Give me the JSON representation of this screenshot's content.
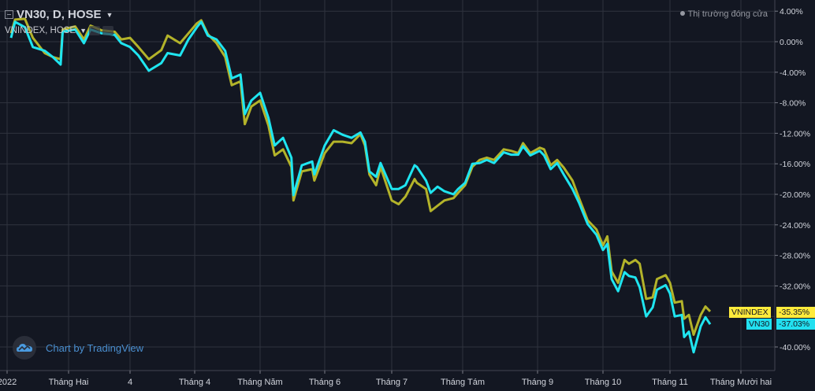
{
  "header": {
    "symbol_title": "VN30, D, HOSE",
    "compare_label": "VNINDEX, HOSE",
    "market_status": "Thị trường đóng cửa"
  },
  "branding": {
    "text": "Chart by TradingView",
    "icon": "tradingview-cloud-icon"
  },
  "colors": {
    "background": "#131722",
    "grid": "#2f333e",
    "vn30": "#1fe5f0",
    "vnindex": "#b3b32a",
    "vnindex_tag": "#ffeb3b",
    "vn30_tag": "#22e0f0"
  },
  "chart_data": {
    "type": "line",
    "title": "",
    "xlabel": "",
    "ylabel": "",
    "ylim": [
      -43,
      5.5
    ],
    "grid": true,
    "y_ticks": [
      "4.00%",
      "0.00%",
      "-4.00%",
      "-8.00%",
      "-12.00%",
      "-16.00%",
      "-20.00%",
      "-24.00%",
      "-28.00%",
      "-32.00%",
      "-40.00%"
    ],
    "y_tick_values": [
      4,
      0,
      -4,
      -8,
      -12,
      -16,
      -20,
      -24,
      -28,
      -32,
      -40
    ],
    "grid_values": [
      4,
      0,
      -4,
      -8,
      -12,
      -16,
      -20,
      -24,
      -28,
      -32,
      -36,
      -40
    ],
    "x_ticks": [
      {
        "label": "2022",
        "date": "2022-01-01"
      },
      {
        "label": "Tháng Hai",
        "date": "2022-02-01"
      },
      {
        "label": "4",
        "date": "2022-03-01"
      },
      {
        "label": "Tháng 4",
        "date": "2022-04-01"
      },
      {
        "label": "Tháng Năm",
        "date": "2022-05-01"
      },
      {
        "label": "Tháng 6",
        "date": "2022-06-01"
      },
      {
        "label": "Tháng 7",
        "date": "2022-07-01"
      },
      {
        "label": "Tháng Tám",
        "date": "2022-08-01"
      },
      {
        "label": "Tháng 9",
        "date": "2022-09-01"
      },
      {
        "label": "Tháng 10",
        "date": "2022-10-01"
      },
      {
        "label": "Tháng 11",
        "date": "2022-11-01"
      },
      {
        "label": "Tháng Mười hai",
        "date": "2022-12-01"
      }
    ],
    "x": [
      "2022-01-03",
      "2022-01-05",
      "2022-01-10",
      "2022-01-14",
      "2022-01-20",
      "2022-01-24",
      "2022-01-28",
      "2022-01-29",
      "2022-02-04",
      "2022-02-08",
      "2022-02-11",
      "2022-02-16",
      "2022-02-22",
      "2022-02-25",
      "2022-03-01",
      "2022-03-05",
      "2022-03-10",
      "2022-03-16",
      "2022-03-19",
      "2022-03-25",
      "2022-03-29",
      "2022-04-02",
      "2022-04-04",
      "2022-04-07",
      "2022-04-11",
      "2022-04-15",
      "2022-04-18",
      "2022-04-22",
      "2022-04-24",
      "2022-04-27",
      "2022-05-01",
      "2022-05-05",
      "2022-05-08",
      "2022-05-12",
      "2022-05-16",
      "2022-05-17",
      "2022-05-21",
      "2022-05-26",
      "2022-05-27",
      "2022-06-01",
      "2022-06-05",
      "2022-06-09",
      "2022-06-13",
      "2022-06-17",
      "2022-06-19",
      "2022-06-21",
      "2022-06-24",
      "2022-06-26",
      "2022-07-01",
      "2022-07-04",
      "2022-07-07",
      "2022-07-11",
      "2022-07-12",
      "2022-07-16",
      "2022-07-18",
      "2022-07-21",
      "2022-07-24",
      "2022-07-28",
      "2022-07-30",
      "2022-08-02",
      "2022-08-05",
      "2022-08-08",
      "2022-08-11",
      "2022-08-14",
      "2022-08-18",
      "2022-08-21",
      "2022-08-24",
      "2022-08-26",
      "2022-08-29",
      "2022-09-02",
      "2022-09-04",
      "2022-09-07",
      "2022-09-10",
      "2022-09-13",
      "2022-09-17",
      "2022-09-20",
      "2022-09-24",
      "2022-09-28",
      "2022-10-01",
      "2022-10-03",
      "2022-10-05",
      "2022-10-08",
      "2022-10-11",
      "2022-10-13",
      "2022-10-16",
      "2022-10-18",
      "2022-10-21",
      "2022-10-24",
      "2022-10-26",
      "2022-10-30",
      "2022-11-01",
      "2022-11-03",
      "2022-11-06",
      "2022-11-07",
      "2022-11-09",
      "2022-11-11",
      "2022-11-14",
      "2022-11-16",
      "2022-11-18"
    ],
    "series": [
      {
        "name": "VN30",
        "last_label": "-37.03%",
        "values": [
          0.5,
          2.6,
          1.9,
          -0.7,
          -1.2,
          -2.0,
          -3.0,
          1.3,
          1.6,
          -0.2,
          1.6,
          1.1,
          0.9,
          -0.2,
          -0.7,
          -1.8,
          -3.8,
          -2.8,
          -1.5,
          -1.8,
          0.3,
          1.9,
          2.6,
          0.8,
          0.3,
          -1.2,
          -4.8,
          -4.3,
          -9.5,
          -7.7,
          -6.7,
          -10.0,
          -13.6,
          -12.6,
          -15.2,
          -20.1,
          -16.2,
          -15.7,
          -17.4,
          -13.6,
          -11.6,
          -12.2,
          -12.6,
          -11.9,
          -13.1,
          -17.0,
          -17.7,
          -15.9,
          -19.3,
          -19.3,
          -18.8,
          -16.2,
          -16.4,
          -18.2,
          -19.8,
          -19.0,
          -19.6,
          -20.0,
          -19.3,
          -18.5,
          -16.0,
          -15.9,
          -15.5,
          -15.9,
          -14.5,
          -14.8,
          -14.8,
          -13.7,
          -14.9,
          -14.3,
          -14.9,
          -16.7,
          -15.9,
          -17.4,
          -19.3,
          -21.1,
          -23.9,
          -25.3,
          -27.3,
          -26.5,
          -31.1,
          -32.7,
          -30.2,
          -30.7,
          -30.9,
          -32.2,
          -36.0,
          -34.8,
          -32.5,
          -31.9,
          -33.0,
          -36.0,
          -35.8,
          -38.7,
          -38.0,
          -40.7,
          -37.3,
          -36.1,
          -37.03
        ]
      },
      {
        "name": "VNINDEX",
        "last_label": "-35.35%",
        "values": [
          1.1,
          2.9,
          3.0,
          0.5,
          -1.5,
          -2.0,
          -2.3,
          1.6,
          2.0,
          0.3,
          2.1,
          1.5,
          1.3,
          0.3,
          0.5,
          -0.7,
          -2.3,
          -1.1,
          0.8,
          -0.2,
          1.1,
          2.4,
          2.8,
          1.0,
          -0.2,
          -2.0,
          -5.7,
          -5.2,
          -10.8,
          -8.5,
          -7.7,
          -11.0,
          -14.9,
          -14.1,
          -16.4,
          -20.8,
          -17.0,
          -16.7,
          -18.2,
          -14.6,
          -13.1,
          -13.1,
          -13.3,
          -12.1,
          -13.6,
          -17.4,
          -18.8,
          -16.4,
          -20.8,
          -21.3,
          -20.3,
          -18.0,
          -18.5,
          -19.3,
          -22.2,
          -21.5,
          -20.8,
          -20.5,
          -19.8,
          -18.8,
          -16.4,
          -15.5,
          -15.2,
          -15.5,
          -14.1,
          -14.3,
          -14.6,
          -13.3,
          -14.6,
          -13.9,
          -14.1,
          -16.2,
          -15.5,
          -16.5,
          -18.2,
          -20.5,
          -23.4,
          -24.6,
          -26.7,
          -25.5,
          -30.1,
          -31.6,
          -28.6,
          -29.1,
          -28.6,
          -29.1,
          -33.7,
          -33.5,
          -31.1,
          -30.6,
          -31.6,
          -34.2,
          -34.0,
          -36.3,
          -35.8,
          -38.4,
          -35.8,
          -34.7,
          -35.35
        ]
      }
    ]
  }
}
